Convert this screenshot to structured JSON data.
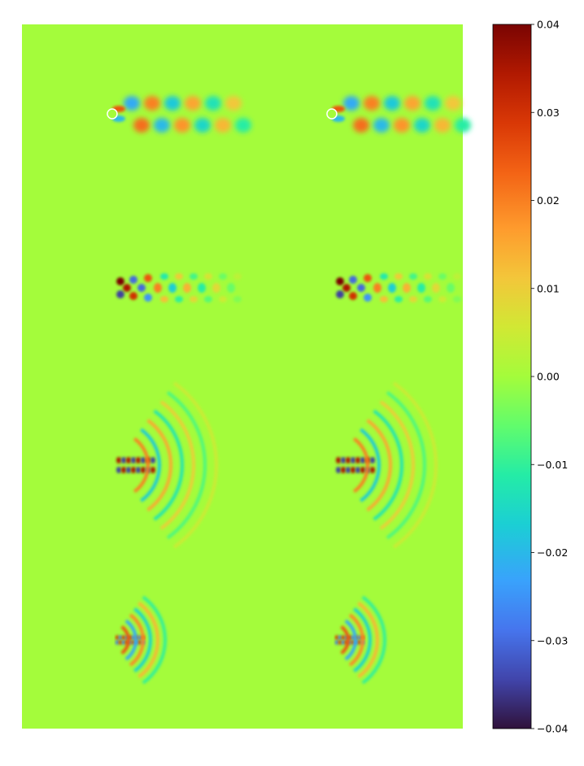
{
  "chart_data": {
    "type": "heatmap",
    "title": "",
    "xlabel": "",
    "ylabel": "",
    "axes_visible": false,
    "layout": "4 rows x 2 columns of field snapshots sharing one colorbar",
    "colormap": "turbo",
    "colorbar": {
      "vmin": -0.04,
      "vmax": 0.04,
      "ticks": [
        0.04,
        0.03,
        0.02,
        0.01,
        0.0,
        -0.01,
        -0.02,
        -0.03,
        -0.04
      ],
      "tick_labels": [
        "0.04",
        "0.03",
        "0.02",
        "0.01",
        "0.00",
        "−0.01",
        "−0.02",
        "−0.03",
        "−0.04"
      ],
      "placement": "right"
    },
    "background_value": 0.0,
    "panels": [
      {
        "row": 1,
        "pattern": "von Karman vortex street: two rows of alternating-sign blobs trailing downstream of a small cylinder",
        "blob_count_per_row": 6,
        "peak_amplitude": 0.02
      },
      {
        "row": 2,
        "pattern": "compact wake: strong alternating lobes at cylinder then centerline blobs decaying downstream",
        "blob_count_per_row": 6,
        "peak_amplitude": 0.035
      },
      {
        "row": 3,
        "pattern": "higher-frequency near-wake lobes with faint arc-shaped ripples downstream",
        "blob_count_per_row": 7,
        "peak_amplitude": 0.035
      },
      {
        "row": 4,
        "pattern": "very fine oscillations concentrated at the cylinder with concentric arcs",
        "blob_count_per_row": 7,
        "peak_amplitude": 0.03
      }
    ]
  }
}
